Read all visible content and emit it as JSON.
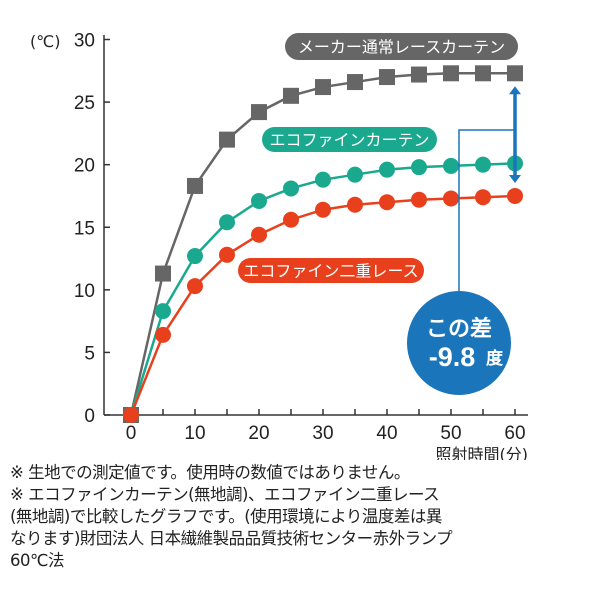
{
  "chart_data": {
    "type": "line",
    "ylabel": "(℃)",
    "xlabel": "照射時間(分)",
    "xlim": [
      0,
      60
    ],
    "ylim": [
      0,
      30
    ],
    "x_ticks": [
      0,
      10,
      20,
      30,
      40,
      50,
      60
    ],
    "y_ticks": [
      0,
      5,
      10,
      15,
      20,
      25,
      30
    ],
    "grid": false,
    "x": [
      0,
      5,
      10,
      15,
      20,
      25,
      30,
      35,
      40,
      45,
      50,
      55,
      60
    ],
    "series": [
      {
        "name": "メーカー通常レースカーテン",
        "color": "#666666",
        "marker": "square",
        "values": [
          0,
          11.3,
          18.3,
          22.0,
          24.2,
          25.5,
          26.2,
          26.6,
          27.0,
          27.2,
          27.3,
          27.3,
          27.3
        ]
      },
      {
        "name": "エコファインカーテン",
        "color": "#1aa98f",
        "marker": "circle",
        "values": [
          0,
          8.3,
          12.7,
          15.4,
          17.1,
          18.1,
          18.8,
          19.2,
          19.6,
          19.8,
          19.9,
          20.0,
          20.1
        ]
      },
      {
        "name": "エコファイン二重レース",
        "color": "#e8401c",
        "marker": "circle",
        "values": [
          0,
          6.4,
          10.3,
          12.8,
          14.4,
          15.6,
          16.4,
          16.8,
          17.0,
          17.2,
          17.3,
          17.4,
          17.5
        ]
      }
    ],
    "annotation": {
      "line1": "この差",
      "line2": "-9.8",
      "unit": "度",
      "color": "#1a75bb"
    }
  },
  "notes": [
    "※ 生地での測定値です。使用時の数値ではありません。",
    "※ エコファインカーテン(無地調)、エコファイン二重レース",
    "(無地調)で比較したグラフです。(使用環境により温度差は異",
    "なります)財団法人 日本繊維製品品質技術センター赤外ランプ",
    "60℃法"
  ]
}
